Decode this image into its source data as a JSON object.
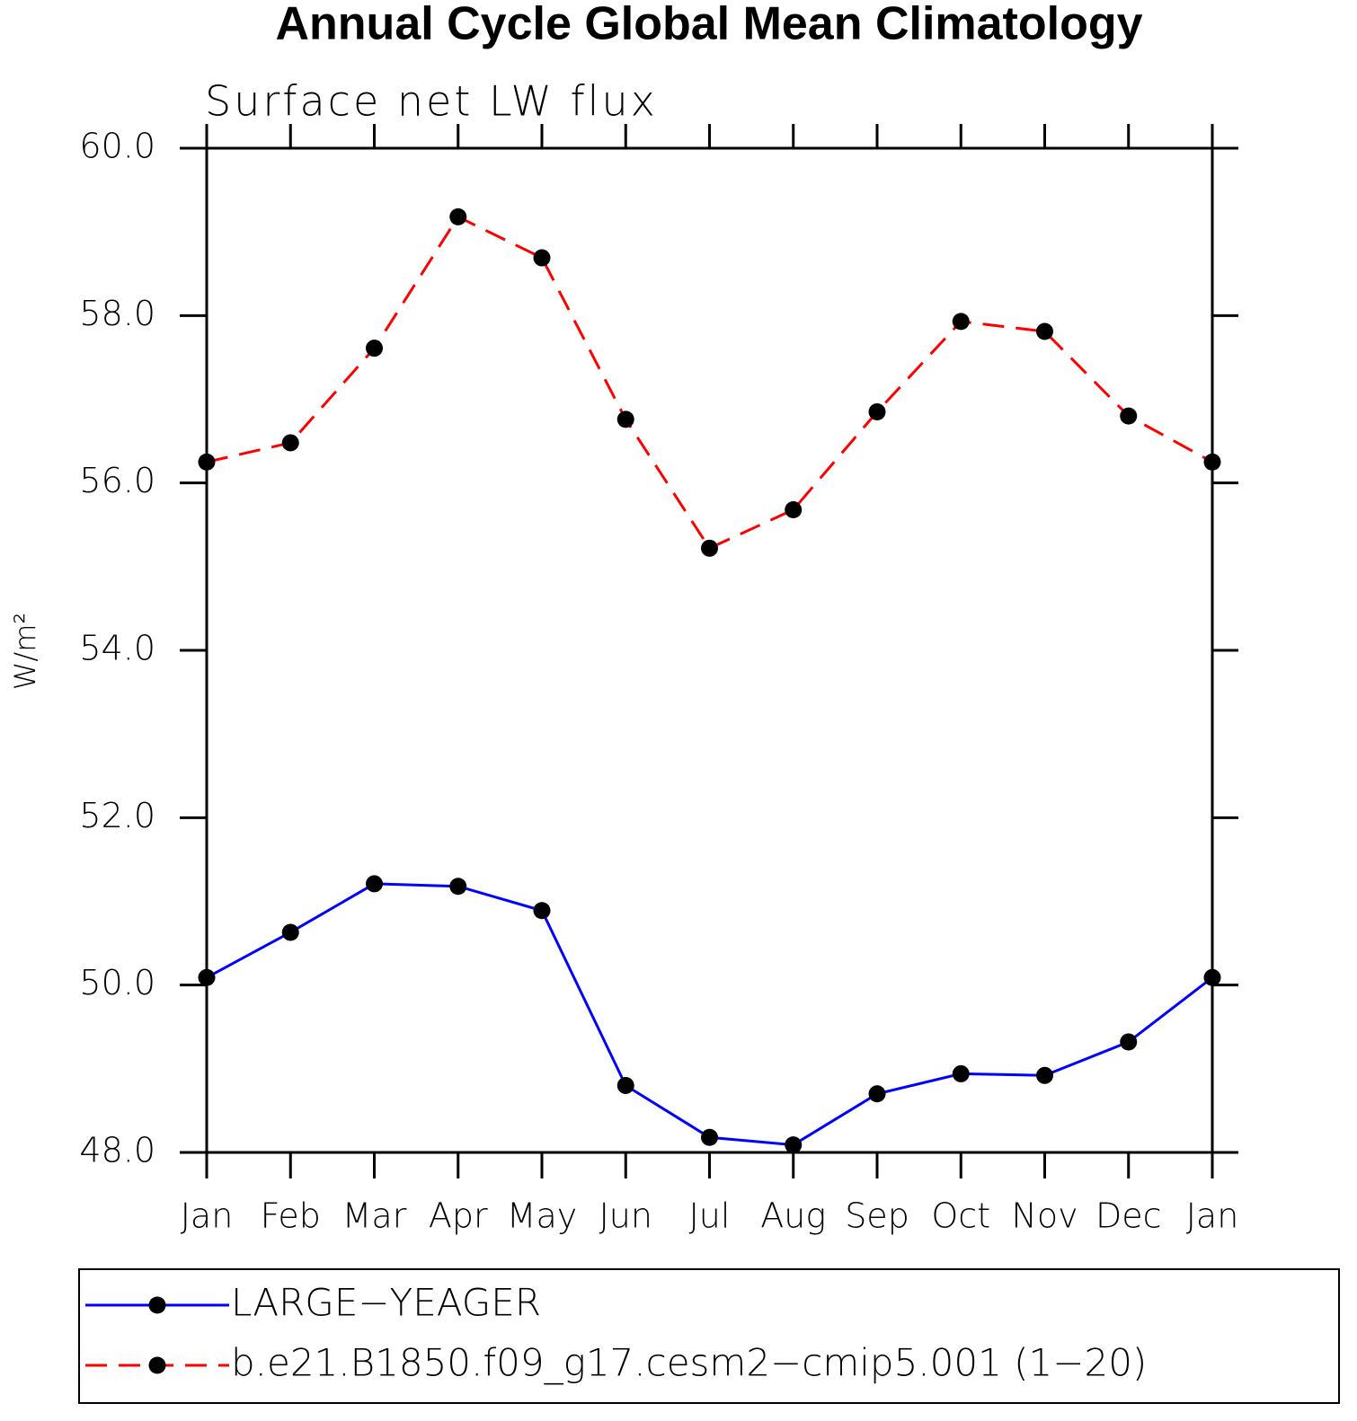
{
  "chart_data": {
    "type": "line",
    "title": "Annual Cycle Global Mean Climatology",
    "subtitle": "Surface net LW flux",
    "y_label": "W/m²",
    "categories": [
      "Jan",
      "Feb",
      "Mar",
      "Apr",
      "May",
      "Jun",
      "Jul",
      "Aug",
      "Sep",
      "Oct",
      "Nov",
      "Dec",
      "Jan"
    ],
    "series": [
      {
        "name": "LARGE−YEAGER",
        "color": "#0000ff",
        "linestyle": "solid",
        "values": [
          50.09,
          50.63,
          51.21,
          51.18,
          50.89,
          48.8,
          48.18,
          48.09,
          48.7,
          48.94,
          48.92,
          49.32,
          50.09
        ]
      },
      {
        "name": "b.e21.B1850.f09_g17.cesm2−cmip5.001 (1−20)",
        "color": "#ff0000",
        "linestyle": "dashed",
        "values": [
          56.25,
          56.48,
          57.61,
          59.18,
          58.69,
          56.76,
          55.22,
          55.68,
          56.85,
          57.93,
          57.81,
          56.8,
          56.25
        ]
      }
    ],
    "ylim": [
      48,
      60
    ],
    "yticks": [
      {
        "value": 48,
        "label": "48.0"
      },
      {
        "value": 50,
        "label": "50.0"
      },
      {
        "value": 52,
        "label": "52.0"
      },
      {
        "value": 54,
        "label": "54.0"
      },
      {
        "value": 56,
        "label": "56.0"
      },
      {
        "value": 58,
        "label": "58.0"
      },
      {
        "value": 60,
        "label": "60.0"
      }
    ],
    "marker_color": "#000000"
  }
}
